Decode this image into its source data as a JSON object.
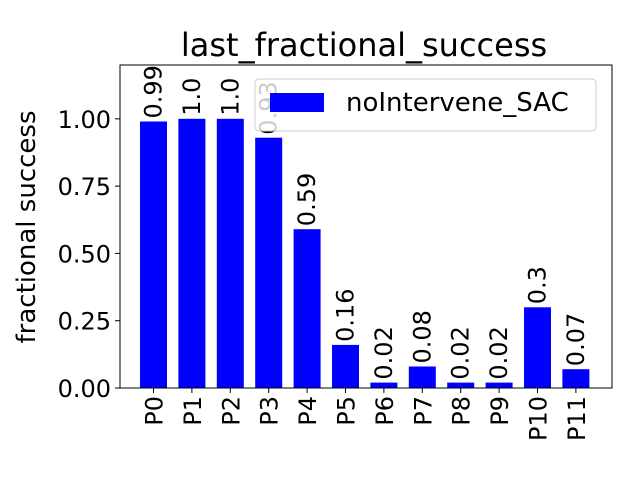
{
  "chart_data": {
    "type": "bar",
    "title": "last_fractional_success",
    "xlabel": "",
    "ylabel": "fractional success",
    "categories": [
      "P0",
      "P1",
      "P2",
      "P3",
      "P4",
      "P5",
      "P6",
      "P7",
      "P8",
      "P9",
      "P10",
      "P11"
    ],
    "series": [
      {
        "name": "noIntervene_SAC",
        "values": [
          0.99,
          1.0,
          1.0,
          0.93,
          0.59,
          0.16,
          0.02,
          0.08,
          0.02,
          0.02,
          0.3,
          0.07
        ],
        "labels": [
          "0.99",
          "1.0",
          "1.0",
          "0.93",
          "0.59",
          "0.16",
          "0.02",
          "0.08",
          "0.02",
          "0.02",
          "0.3",
          "0.07"
        ],
        "color": "#0000ff"
      }
    ],
    "ylim": [
      0,
      1.2
    ],
    "yticks": [
      0.0,
      0.25,
      0.5,
      0.75,
      1.0
    ],
    "ytick_labels": [
      "0.00",
      "0.25",
      "0.50",
      "0.75",
      "1.00"
    ],
    "grid": false,
    "legend_position": "top-right"
  }
}
